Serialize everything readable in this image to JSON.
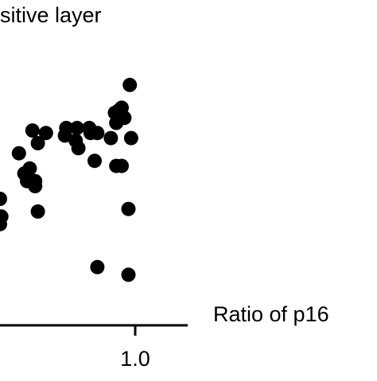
{
  "chart_data": {
    "type": "scatter",
    "title": "sitive layer",
    "xlabel": "Ratio of p16",
    "ylabel": "",
    "x_ticks": [
      1.0
    ],
    "x_tick_labels": [
      "1.0"
    ],
    "xlim": [
      0.0,
      1.2
    ],
    "ylim": [
      0.0,
      1.05
    ],
    "grid": false,
    "legend": "none",
    "marker_color": "#000000",
    "points": [
      {
        "x": 0.0,
        "y": 0.5
      },
      {
        "x": 0.0,
        "y": 0.4
      },
      {
        "x": 0.01,
        "y": 0.43
      },
      {
        "x": 0.14,
        "y": 0.68
      },
      {
        "x": 0.18,
        "y": 0.6
      },
      {
        "x": 0.2,
        "y": 0.57
      },
      {
        "x": 0.22,
        "y": 0.62
      },
      {
        "x": 0.24,
        "y": 0.77
      },
      {
        "x": 0.26,
        "y": 0.55
      },
      {
        "x": 0.26,
        "y": 0.57
      },
      {
        "x": 0.28,
        "y": 0.45
      },
      {
        "x": 0.28,
        "y": 0.72
      },
      {
        "x": 0.34,
        "y": 0.76
      },
      {
        "x": 0.48,
        "y": 0.75
      },
      {
        "x": 0.49,
        "y": 0.78
      },
      {
        "x": 0.56,
        "y": 0.73
      },
      {
        "x": 0.57,
        "y": 0.78
      },
      {
        "x": 0.58,
        "y": 0.7
      },
      {
        "x": 0.66,
        "y": 0.78
      },
      {
        "x": 0.67,
        "y": 0.76
      },
      {
        "x": 0.72,
        "y": 0.76
      },
      {
        "x": 0.7,
        "y": 0.65
      },
      {
        "x": 0.72,
        "y": 0.23
      },
      {
        "x": 0.82,
        "y": 0.74
      },
      {
        "x": 0.85,
        "y": 0.84
      },
      {
        "x": 0.86,
        "y": 0.63
      },
      {
        "x": 0.86,
        "y": 0.8
      },
      {
        "x": 0.88,
        "y": 0.85
      },
      {
        "x": 0.9,
        "y": 0.63
      },
      {
        "x": 0.9,
        "y": 0.86
      },
      {
        "x": 0.92,
        "y": 0.82
      },
      {
        "x": 0.95,
        "y": 0.46
      },
      {
        "x": 0.95,
        "y": 0.2
      },
      {
        "x": 0.97,
        "y": 0.74
      },
      {
        "x": 0.96,
        "y": 0.95
      }
    ]
  }
}
